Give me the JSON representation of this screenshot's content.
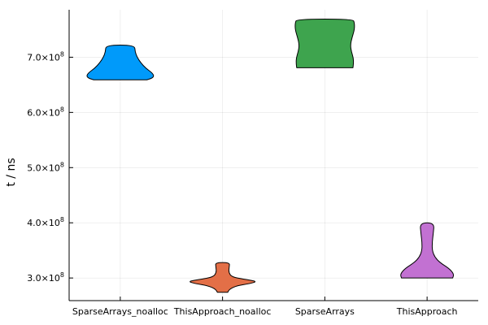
{
  "chart_data": {
    "type": "violin",
    "ylabel": "t / ns",
    "categories": [
      "SparseArrays_noalloc",
      "ThisApproach_noalloc",
      "SparseArrays",
      "ThisApproach"
    ],
    "yticks": [
      {
        "value": 300000000,
        "mantissa": "3.0×10",
        "exp": "8"
      },
      {
        "value": 400000000,
        "mantissa": "4.0×10",
        "exp": "8"
      },
      {
        "value": 500000000,
        "mantissa": "5.0×10",
        "exp": "8"
      },
      {
        "value": 600000000,
        "mantissa": "6.0×10",
        "exp": "8"
      },
      {
        "value": 700000000,
        "mantissa": "7.0×10",
        "exp": "8"
      }
    ],
    "ylim": [
      259000000,
      786000000
    ],
    "grid": true,
    "series": [
      {
        "category": "SparseArrays_noalloc",
        "color": "#009AFA",
        "profile": [
          [
            659000000.0,
            0.52
          ],
          [
            662000000.0,
            0.62
          ],
          [
            666000000.0,
            0.66
          ],
          [
            672000000.0,
            0.62
          ],
          [
            680000000.0,
            0.5
          ],
          [
            690000000.0,
            0.4
          ],
          [
            700000000.0,
            0.33
          ],
          [
            710000000.0,
            0.29
          ],
          [
            722000000.0,
            0.28
          ]
        ]
      },
      {
        "category": "ThisApproach_noalloc",
        "color": "#E36F47",
        "profile": [
          [
            274000000.0,
            0.1
          ],
          [
            280000000.0,
            0.14
          ],
          [
            286000000.0,
            0.28
          ],
          [
            290000000.0,
            0.55
          ],
          [
            294000000.0,
            0.68
          ],
          [
            298000000.0,
            0.4
          ],
          [
            302000000.0,
            0.18
          ],
          [
            310000000.0,
            0.12
          ],
          [
            320000000.0,
            0.13
          ],
          [
            328000000.0,
            0.14
          ]
        ]
      },
      {
        "category": "SparseArrays",
        "color": "#3EA44E",
        "profile": [
          [
            681000000.0,
            0.55
          ],
          [
            688000000.0,
            0.56
          ],
          [
            698000000.0,
            0.56
          ],
          [
            710000000.0,
            0.52
          ],
          [
            722000000.0,
            0.5
          ],
          [
            735000000.0,
            0.53
          ],
          [
            750000000.0,
            0.58
          ],
          [
            762000000.0,
            0.58
          ],
          [
            769000000.0,
            0.55
          ]
        ]
      },
      {
        "category": "ThisApproach",
        "color": "#C271D2",
        "profile": [
          [
            300000000.0,
            0.5
          ],
          [
            305000000.0,
            0.52
          ],
          [
            310000000.0,
            0.5
          ],
          [
            318000000.0,
            0.42
          ],
          [
            328000000.0,
            0.25
          ],
          [
            338000000.0,
            0.15
          ],
          [
            350000000.0,
            0.1
          ],
          [
            365000000.0,
            0.1
          ],
          [
            380000000.0,
            0.12
          ],
          [
            400000000.0,
            0.14
          ]
        ]
      }
    ]
  }
}
